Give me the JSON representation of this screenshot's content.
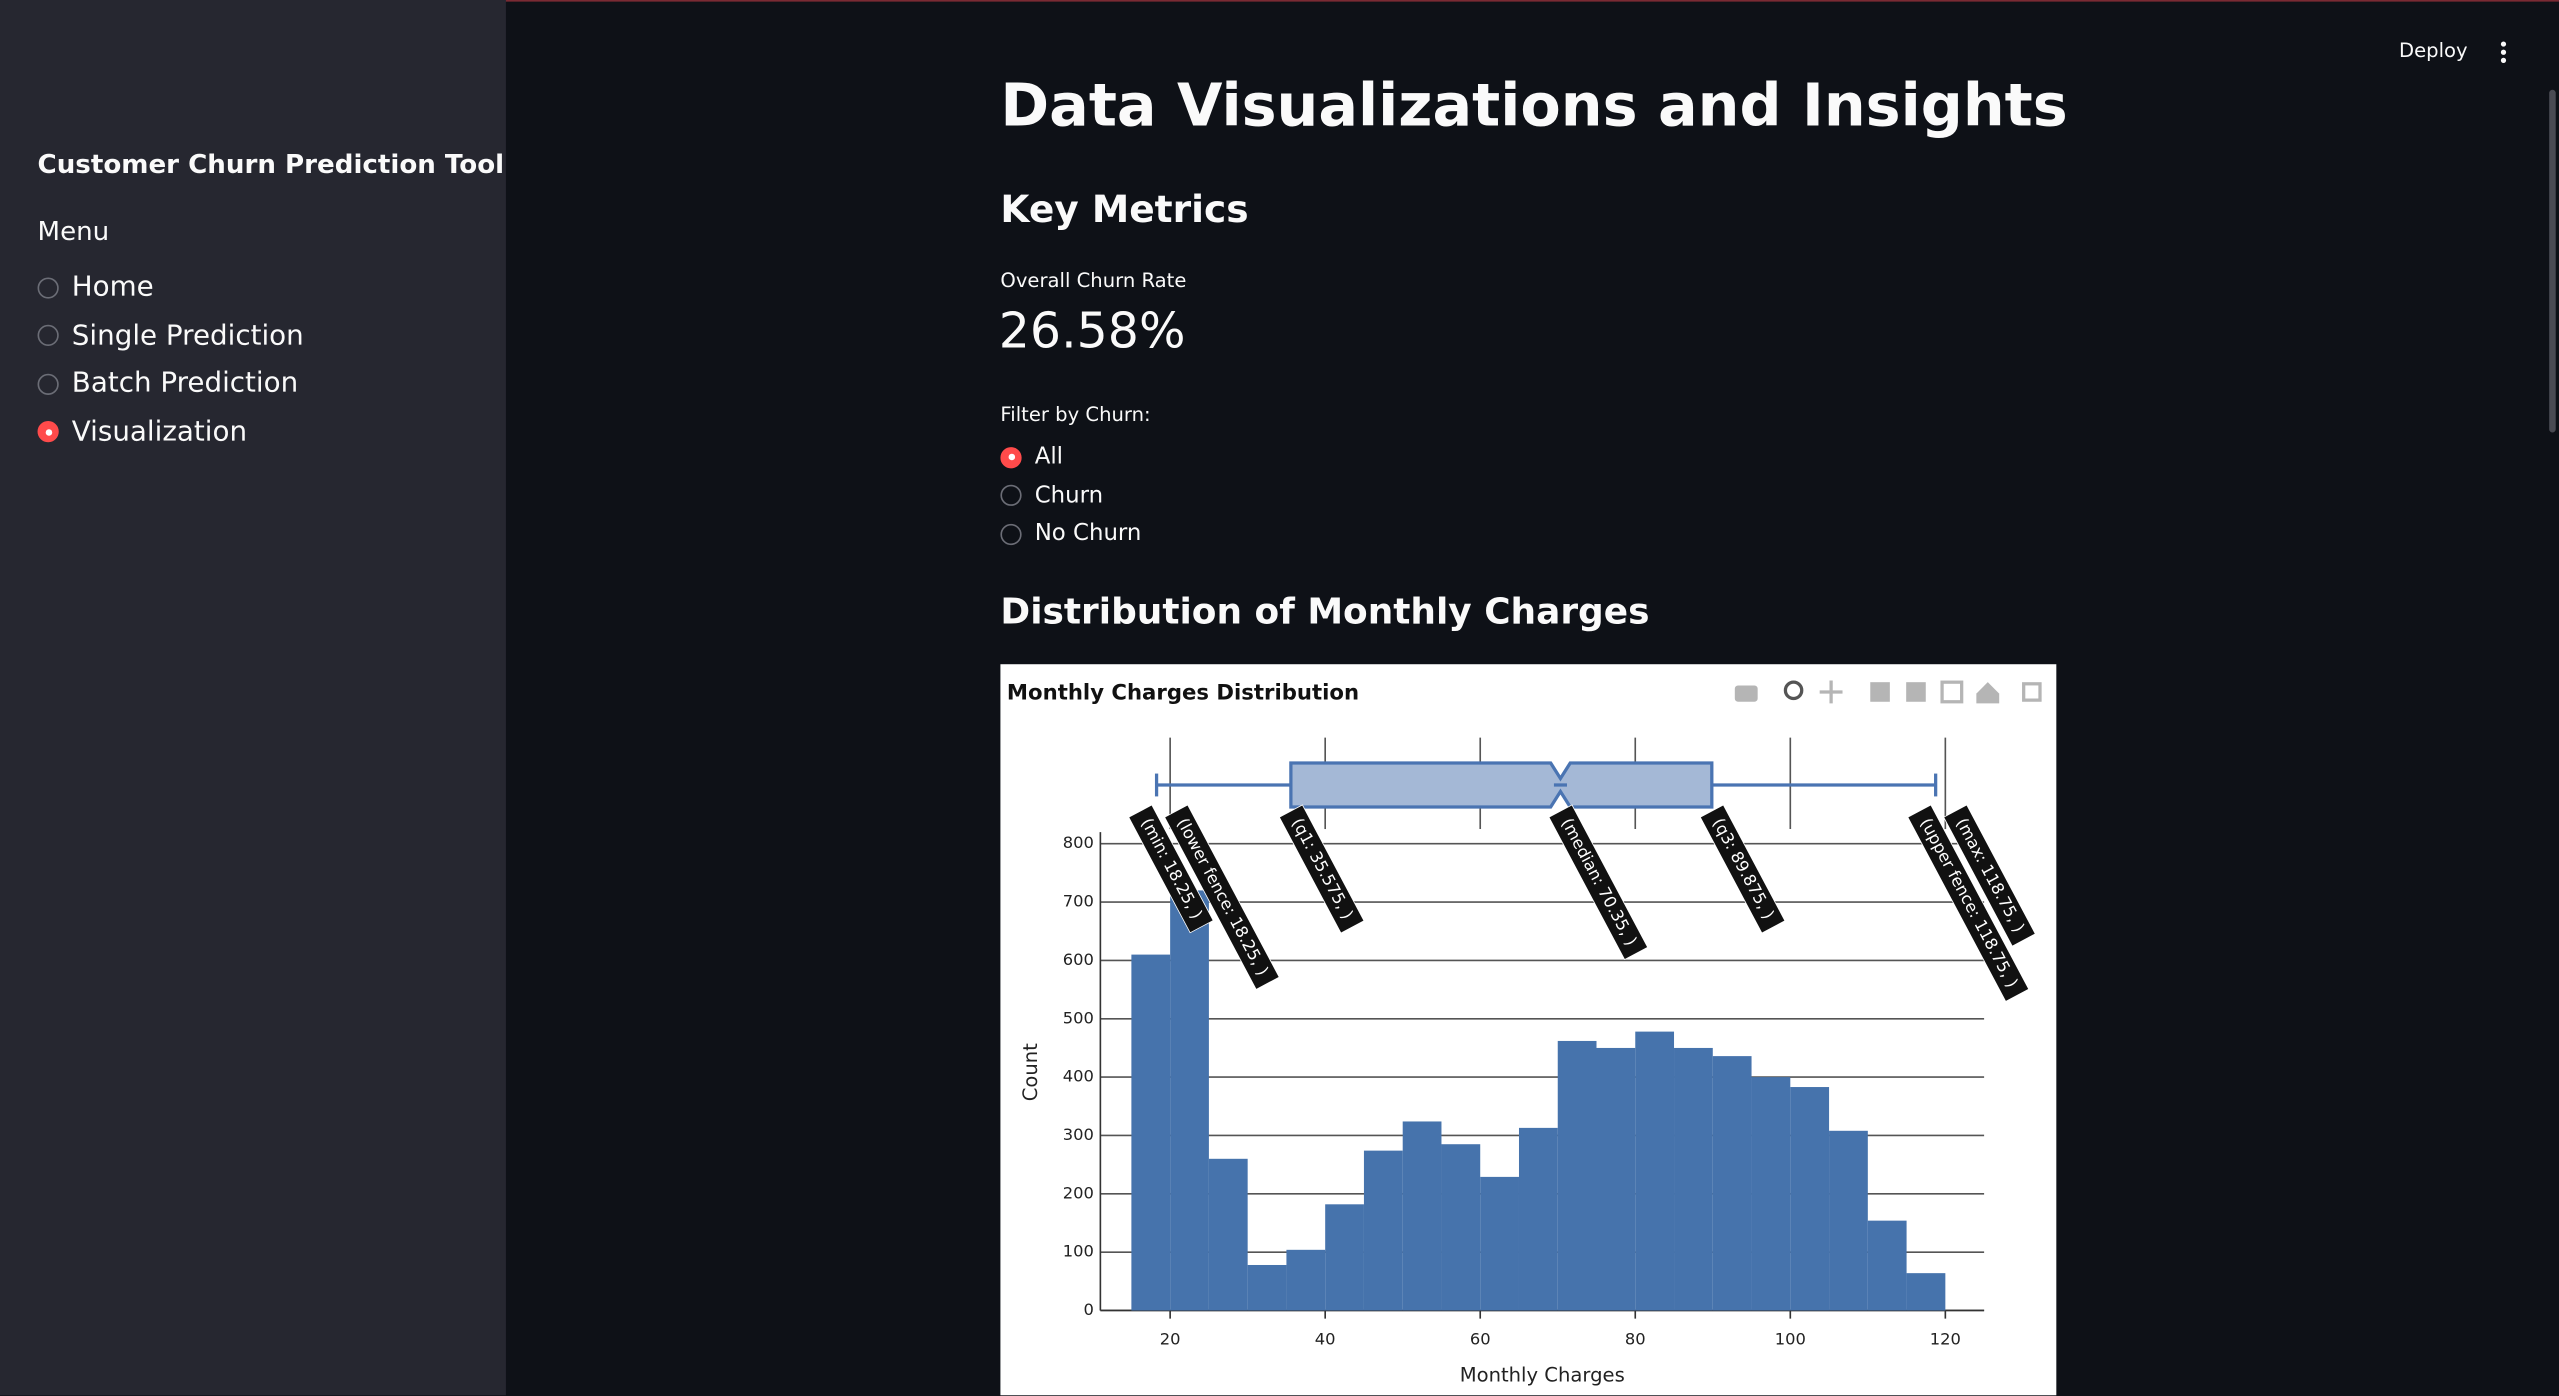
{
  "header": {
    "deploy": "Deploy"
  },
  "sidebar": {
    "title": "Customer Churn Prediction Tool",
    "menu_label": "Menu",
    "options": [
      "Home",
      "Single Prediction",
      "Batch Prediction",
      "Visualization"
    ],
    "selected": 3
  },
  "main": {
    "title": "Data Visualizations and Insights",
    "metrics_heading": "Key Metrics",
    "metric": {
      "label": "Overall Churn Rate",
      "value": "26.58%"
    },
    "filter": {
      "label": "Filter by Churn:",
      "options": [
        "All",
        "Churn",
        "No Churn"
      ],
      "selected": 0
    },
    "section_heading": "Distribution of Monthly Charges"
  },
  "chart_data": {
    "type": "histogram",
    "title": "Monthly Charges Distribution",
    "x_label": "Monthly Charges",
    "y_label": "Count",
    "bins": [
      15,
      20,
      25,
      30,
      35,
      40,
      45,
      50,
      55,
      60,
      65,
      70,
      75,
      80,
      85,
      90,
      95,
      100,
      105,
      110,
      115,
      120
    ],
    "values": [
      610,
      720,
      260,
      78,
      104,
      182,
      274,
      324,
      285,
      229,
      313,
      462,
      450,
      478,
      450,
      436,
      400,
      383,
      308,
      154,
      64
    ],
    "color": "#4673ac",
    "xlim": [
      11,
      125
    ],
    "ylim": [
      0,
      820
    ],
    "xticks": [
      20,
      40,
      60,
      80,
      100,
      120
    ],
    "yticks": [
      0,
      100,
      200,
      300,
      400,
      500,
      600,
      700,
      800
    ],
    "grid": true,
    "box": {
      "values": [
        18.25,
        18.25,
        35.575,
        70.35,
        89.875,
        118.75,
        118.75
      ],
      "value_labels": [
        "(min: 18.25, )",
        "(lower fence: 18.25, )",
        "(q1: 35.575, )",
        "(median: 70.35, )",
        "(q3: 89.875, )",
        "(upper fence: 118.75, )",
        "(max: 118.75, )"
      ],
      "color": "#4a74b2",
      "fill": "#a4b8d6"
    }
  }
}
